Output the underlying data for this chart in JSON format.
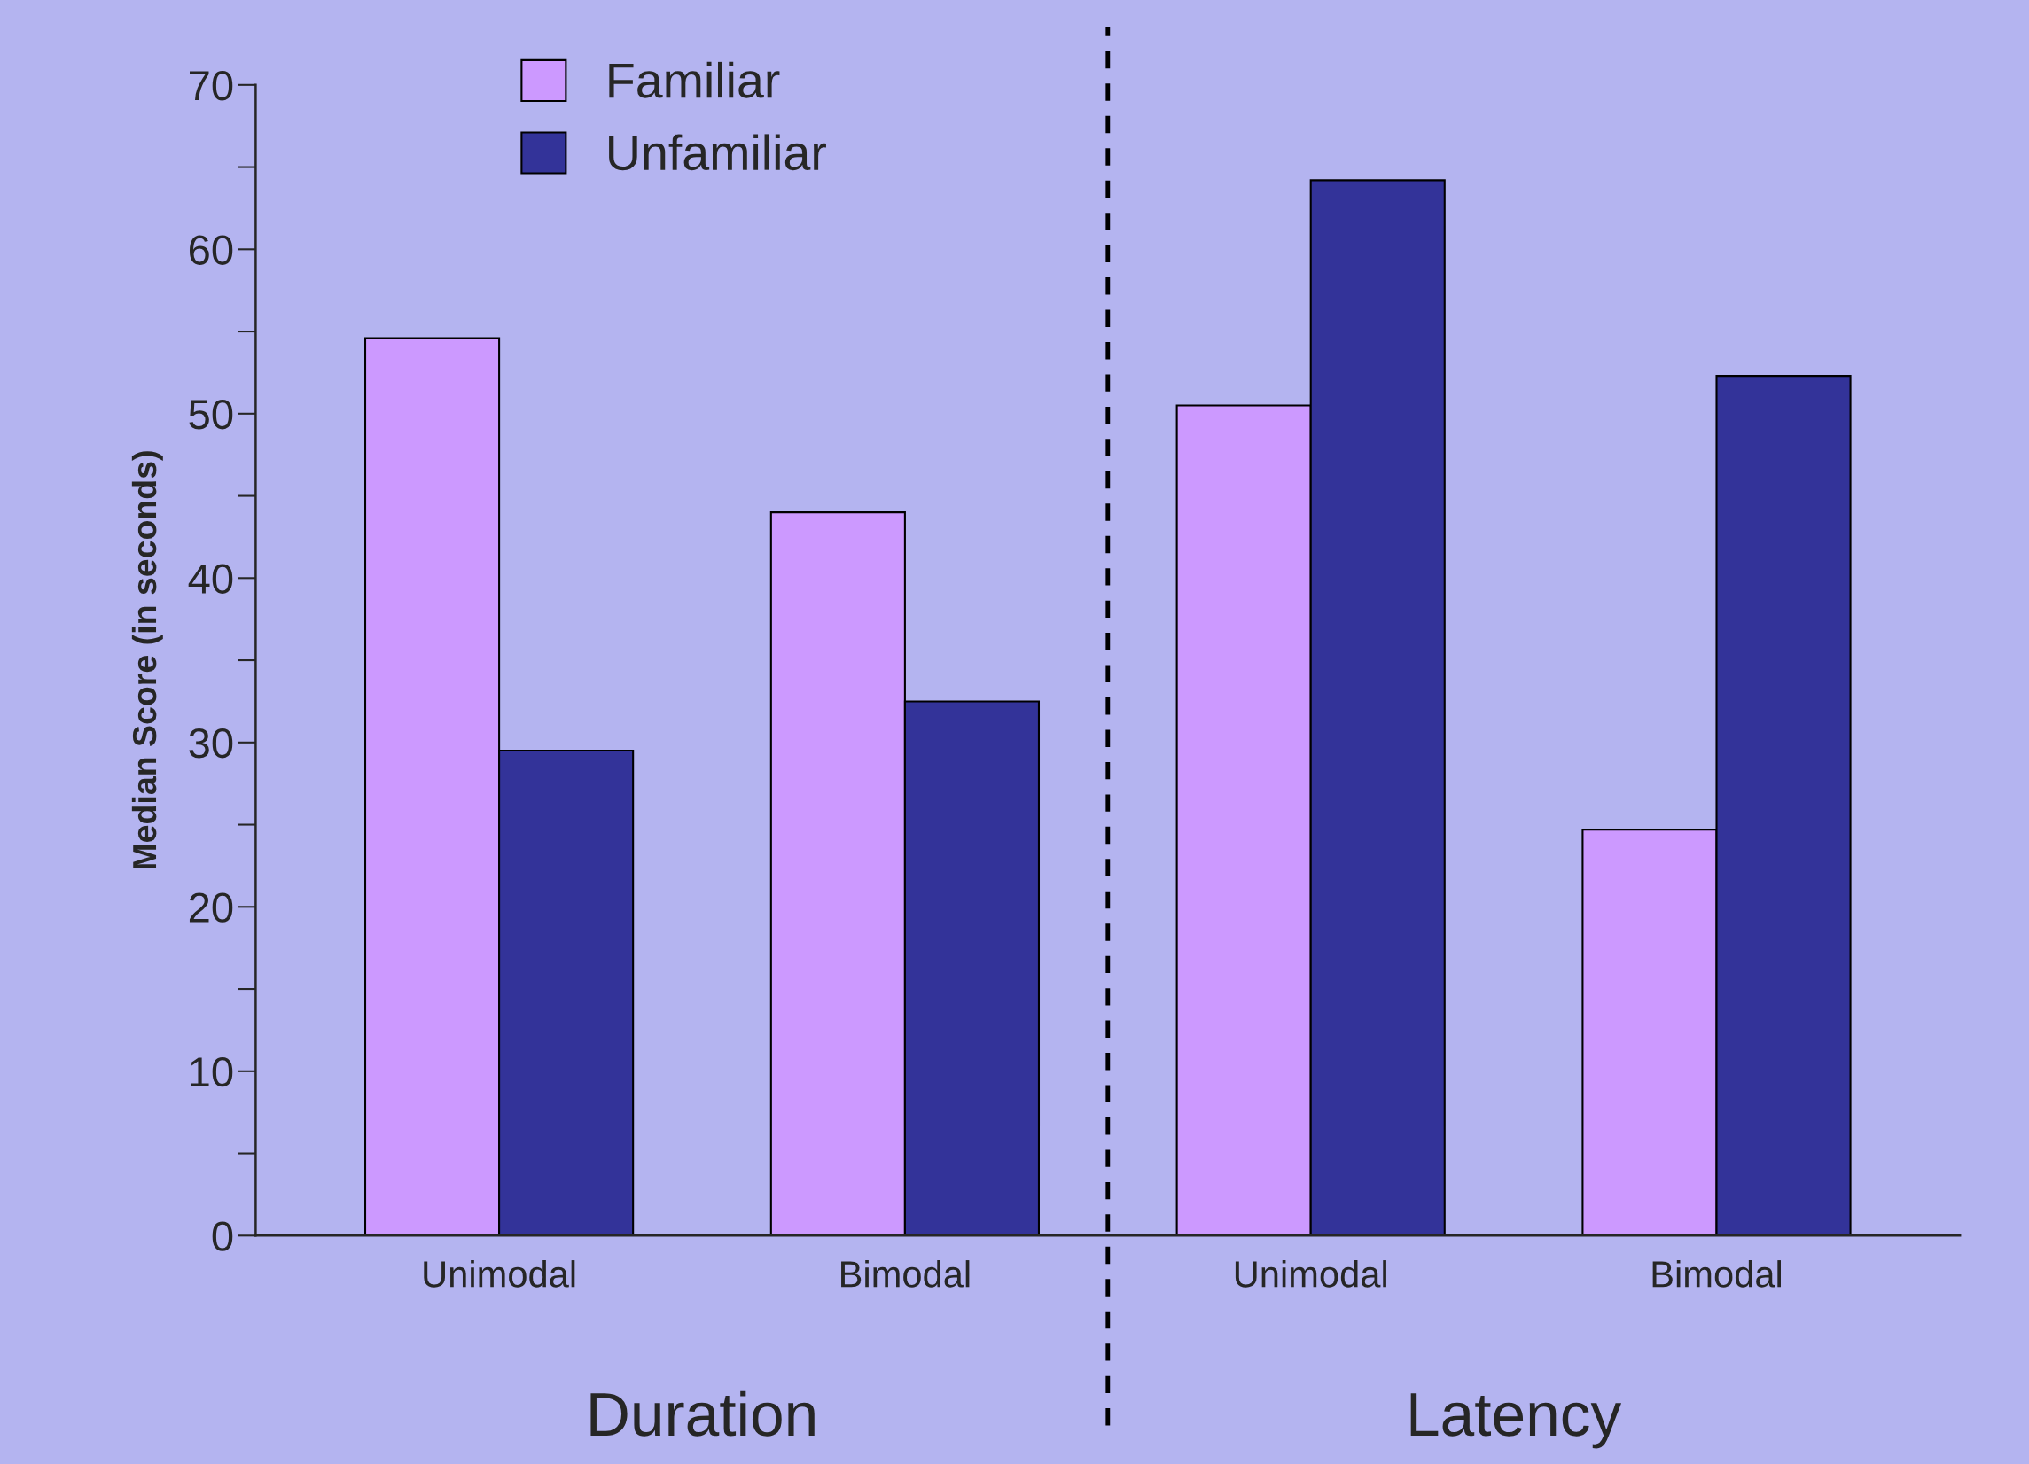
{
  "chart_data": {
    "type": "bar",
    "ylabel": "Median Score (in seconds)",
    "categories": [
      "Unimodal",
      "Bimodal",
      "Unimodal",
      "Bimodal"
    ],
    "series": [
      {
        "name": "Familiar",
        "color": "#cc99ff",
        "values": [
          54.6,
          44.0,
          50.5,
          24.7
        ]
      },
      {
        "name": "Unfamiliar",
        "color": "#333399",
        "values": [
          29.5,
          32.5,
          64.2,
          52.3
        ]
      }
    ],
    "ylim": [
      0,
      70
    ],
    "yticks": [
      0,
      10,
      20,
      30,
      40,
      50,
      60,
      70
    ],
    "annotations": [
      "Duration",
      "Latency"
    ],
    "legend": "top left",
    "grid": false
  }
}
